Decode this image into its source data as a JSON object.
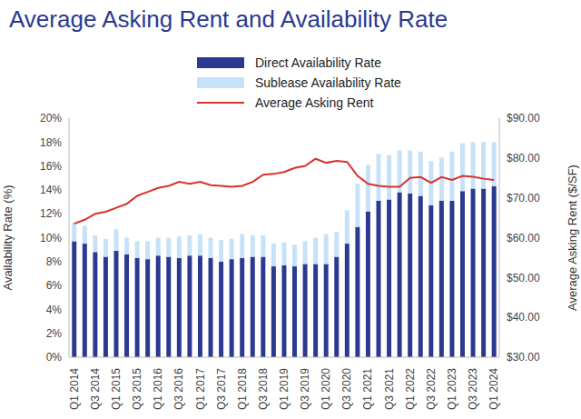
{
  "chart_data": {
    "type": "bar",
    "title": "Average Asking Rent and Availability Rate",
    "categories": [
      "Q1 2014",
      null,
      "Q3 2014",
      null,
      "Q1 2015",
      null,
      "Q3 2015",
      null,
      "Q1 2016",
      null,
      "Q3 2016",
      null,
      "Q1 2017",
      null,
      "Q3 2017",
      null,
      "Q1 2018",
      null,
      "Q3 2018",
      null,
      "Q1 2019",
      null,
      "Q3 2019",
      null,
      "Q1 2020",
      null,
      "Q3 2020",
      null,
      "Q1 2021",
      null,
      "Q3 2021",
      null,
      "Q1 2022",
      null,
      "Q3 2022",
      null,
      "Q1 2023",
      null,
      "Q3 2023",
      null,
      "Q1 2024"
    ],
    "series": [
      {
        "name": "Direct Availability Rate",
        "type": "bar",
        "color": "#2b3990",
        "values": [
          9.7,
          9.5,
          8.8,
          8.4,
          8.9,
          8.6,
          8.3,
          8.2,
          8.5,
          8.4,
          8.3,
          8.5,
          8.5,
          8.3,
          8.0,
          8.2,
          8.3,
          8.4,
          8.4,
          7.6,
          7.7,
          7.6,
          7.8,
          7.8,
          7.8,
          8.4,
          9.5,
          10.9,
          12.2,
          13.1,
          13.2,
          13.8,
          13.7,
          13.5,
          12.7,
          13.1,
          13.1,
          13.9,
          14.1,
          14.1,
          14.3
        ]
      },
      {
        "name": "Sublease Availability Rate",
        "type": "bar",
        "color": "#c6e2f8",
        "values": [
          1.6,
          1.5,
          1.4,
          1.5,
          1.8,
          1.4,
          1.4,
          1.5,
          1.5,
          1.6,
          1.8,
          1.7,
          1.8,
          1.7,
          1.8,
          1.7,
          2.0,
          1.8,
          1.8,
          1.9,
          1.9,
          1.8,
          1.9,
          2.2,
          2.5,
          2.1,
          2.8,
          3.6,
          3.9,
          3.9,
          3.7,
          3.5,
          3.6,
          3.7,
          3.7,
          3.6,
          4.1,
          4.0,
          3.9,
          3.9,
          3.7
        ]
      },
      {
        "name": "Average Asking Rent",
        "type": "line",
        "axis": "y2",
        "color": "#d9312b",
        "values": [
          63.5,
          64.5,
          66.0,
          66.5,
          67.5,
          68.5,
          70.5,
          71.5,
          72.5,
          73.0,
          74.0,
          73.5,
          74.0,
          73.2,
          73.0,
          72.8,
          73.0,
          74.0,
          75.8,
          76.0,
          76.5,
          77.5,
          78.0,
          79.8,
          78.8,
          79.3,
          79.0,
          75.5,
          73.5,
          73.0,
          72.8,
          72.8,
          75.0,
          75.2,
          73.8,
          75.2,
          74.5,
          75.5,
          75.3,
          74.8,
          74.5
        ]
      }
    ],
    "stacked": true,
    "ylim": [
      0,
      20
    ],
    "yticks": [
      {
        "value": 0,
        "label": "0%"
      },
      {
        "value": 2,
        "label": "2%"
      },
      {
        "value": 4,
        "label": "4%"
      },
      {
        "value": 6,
        "label": "6%"
      },
      {
        "value": 8,
        "label": "8%"
      },
      {
        "value": 10,
        "label": "10%"
      },
      {
        "value": 12,
        "label": "12%"
      },
      {
        "value": 14,
        "label": "14%"
      },
      {
        "value": 16,
        "label": "16%"
      },
      {
        "value": 18,
        "label": "18%"
      },
      {
        "value": 20,
        "label": "20%"
      }
    ],
    "y2lim": [
      30,
      90
    ],
    "y2ticks": [
      {
        "value": 30,
        "label": "$30.00"
      },
      {
        "value": 40,
        "label": "$40.00"
      },
      {
        "value": 50,
        "label": "$50.00"
      },
      {
        "value": 60,
        "label": "$60.00"
      },
      {
        "value": 70,
        "label": "$70.00"
      },
      {
        "value": 80,
        "label": "$80.00"
      },
      {
        "value": 90,
        "label": "$90.00"
      }
    ],
    "y_label": "Availability Rate (%)",
    "y2_label": "Average Asking Rent ($/SF)",
    "grid": false,
    "legend": "top"
  }
}
